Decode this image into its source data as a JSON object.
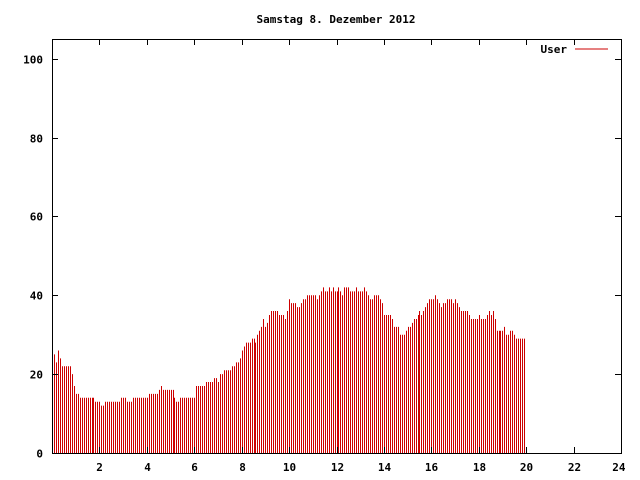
{
  "chart_data": {
    "type": "bar",
    "title": "Samstag 8. Dezember 2012",
    "xlabel": "",
    "ylabel": "",
    "xlim": [
      0,
      24
    ],
    "ylim": [
      0,
      105
    ],
    "x_ticks": [
      2,
      4,
      6,
      8,
      10,
      12,
      14,
      16,
      18,
      20,
      22,
      24
    ],
    "y_ticks": [
      0,
      20,
      40,
      60,
      80,
      100
    ],
    "grid": false,
    "legend_position": "top-right",
    "series": [
      {
        "name": "User",
        "color": "#cc0000",
        "interval_minutes": 5,
        "values": [
          28,
          25,
          23,
          26,
          24,
          22,
          22,
          22,
          22,
          22,
          20,
          17,
          15,
          15,
          14,
          14,
          14,
          14,
          14,
          14,
          14,
          14,
          13,
          13,
          13,
          12,
          12,
          13,
          13,
          13,
          13,
          13,
          13,
          13,
          13,
          14,
          14,
          14,
          13,
          13,
          13,
          14,
          14,
          14,
          14,
          14,
          14,
          14,
          14,
          15,
          15,
          15,
          15,
          15,
          16,
          17,
          16,
          16,
          16,
          16,
          16,
          16,
          14,
          13,
          13,
          14,
          14,
          14,
          14,
          14,
          14,
          14,
          14,
          17,
          17,
          17,
          17,
          17,
          18,
          18,
          18,
          18,
          19,
          19,
          18,
          20,
          20,
          21,
          21,
          21,
          21,
          22,
          22,
          23,
          23,
          24,
          26,
          27,
          28,
          28,
          28,
          29,
          29,
          28,
          30,
          31,
          32,
          34,
          32,
          33,
          35,
          36,
          36,
          36,
          36,
          35,
          35,
          35,
          34,
          36,
          39,
          38,
          38,
          38,
          37,
          37,
          38,
          39,
          39,
          40,
          40,
          40,
          40,
          40,
          39,
          40,
          41,
          42,
          41,
          41,
          42,
          41,
          42,
          41,
          41,
          42,
          41,
          40,
          42,
          42,
          42,
          41,
          41,
          41,
          42,
          41,
          41,
          41,
          42,
          41,
          40,
          39,
          39,
          40,
          40,
          40,
          39,
          38,
          35,
          35,
          35,
          35,
          34,
          32,
          32,
          32,
          30,
          30,
          30,
          31,
          32,
          32,
          33,
          34,
          34,
          35,
          36,
          35,
          36,
          37,
          38,
          39,
          39,
          39,
          40,
          39,
          38,
          37,
          38,
          38,
          39,
          39,
          39,
          38,
          39,
          38,
          37,
          36,
          36,
          36,
          36,
          35,
          34,
          34,
          34,
          34,
          35,
          34,
          34,
          34,
          35,
          36,
          35,
          36,
          34,
          31,
          31,
          31,
          31,
          32,
          30,
          30,
          31,
          31,
          30,
          29,
          29,
          29,
          29,
          29
        ]
      }
    ]
  }
}
